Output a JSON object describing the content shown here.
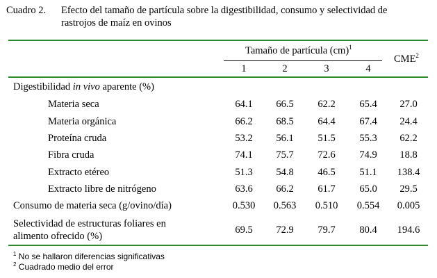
{
  "caption": {
    "lead": "Cuadro 2.",
    "line1": "Efecto del tamaño de partícula sobre la digestibilidad, consumo y selectividad de",
    "line2": "rastrojos de maíz en ovinos"
  },
  "header": {
    "group_label": "Tamaño de partícula (cm)",
    "group_sup": "1",
    "columns": [
      "1",
      "2",
      "3",
      "4"
    ],
    "cme_label": "CME",
    "cme_sup": "2"
  },
  "section_digestibility": {
    "prefix": "Digestibilidad ",
    "italic": "in vivo",
    "suffix": " aparente (%)"
  },
  "rows": [
    {
      "label": "Materia seca",
      "values": [
        "64.1",
        "66.5",
        "62.2",
        "65.4"
      ],
      "cme": "27.0"
    },
    {
      "label": "Materia orgánica",
      "values": [
        "66.2",
        "68.5",
        "64.4",
        "67.4"
      ],
      "cme": "24.4"
    },
    {
      "label": "Proteína cruda",
      "values": [
        "53.2",
        "56.1",
        "51.5",
        "55.3"
      ],
      "cme": "62.2"
    },
    {
      "label": "Fibra cruda",
      "values": [
        "74.1",
        "75.7",
        "72.6",
        "74.9"
      ],
      "cme": "18.8"
    },
    {
      "label": "Extracto etéreo",
      "values": [
        "51.3",
        "54.8",
        "46.5",
        "51.1"
      ],
      "cme": "138.4"
    },
    {
      "label": "Extracto libre de nitrógeno",
      "values": [
        "63.6",
        "66.2",
        "61.7",
        "65.0"
      ],
      "cme": "29.5"
    },
    {
      "label": "Consumo de materia seca (g/ovino/día)",
      "values": [
        "0.530",
        "0.563",
        "0.510",
        "0.554"
      ],
      "cme": "0.005"
    }
  ],
  "last_row": {
    "label_line1": "Selectividad de estructuras foliares en",
    "label_line2": "alimento ofrecido (%)",
    "values": [
      "69.5",
      "72.9",
      "79.7",
      "80.4"
    ],
    "cme": "194.6"
  },
  "footnotes": [
    {
      "mark": "1",
      "text": "No se hallaron diferencias significativas"
    },
    {
      "mark": "2",
      "text": "Cuadrado medio del error"
    }
  ]
}
